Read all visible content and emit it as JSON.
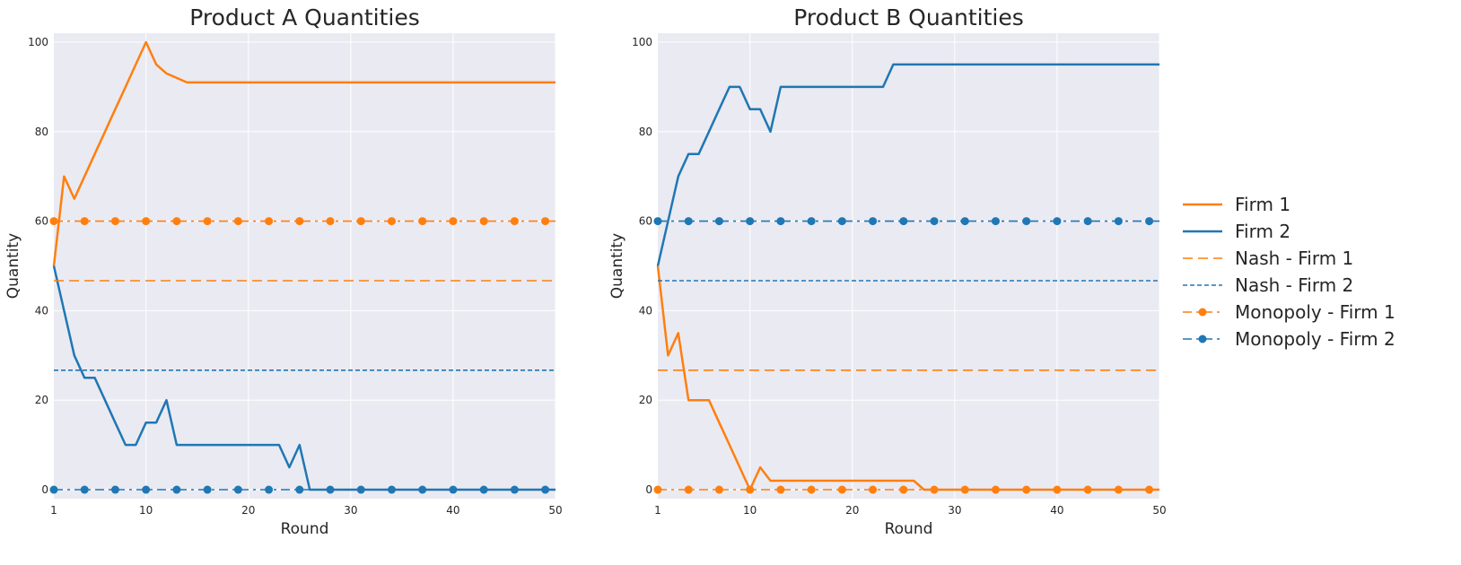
{
  "colors": {
    "firm1": "#ff7f0e",
    "firm2": "#1f77b4",
    "plot_bg": "#eaeaf2",
    "grid": "#ffffff",
    "text": "#262626"
  },
  "legend": {
    "position": "right",
    "items": [
      {
        "label": "Firm 1",
        "color": "#ff7f0e",
        "style": "solid"
      },
      {
        "label": "Firm 2",
        "color": "#1f77b4",
        "style": "solid"
      },
      {
        "label": "Nash - Firm 1",
        "color": "#ff7f0e",
        "style": "dashed"
      },
      {
        "label": "Nash - Firm 2",
        "color": "#1f77b4",
        "style": "dotted"
      },
      {
        "label": "Monopoly - Firm 1",
        "color": "#ff7f0e",
        "style": "dashdot-marker"
      },
      {
        "label": "Monopoly - Firm 2",
        "color": "#1f77b4",
        "style": "dashdot-marker"
      }
    ]
  },
  "chart_data": [
    {
      "type": "line",
      "title": "Product A Quantities",
      "xlabel": "Round",
      "ylabel": "Quantity",
      "xlim": [
        1,
        50
      ],
      "ylim": [
        -2,
        102
      ],
      "xticks": [
        10,
        20,
        30,
        40,
        50
      ],
      "yticks": [
        0,
        20,
        40,
        60,
        80,
        100
      ],
      "grid": true,
      "series": [
        {
          "name": "Firm 1",
          "color": "#ff7f0e",
          "style": "solid",
          "x": [
            1,
            2,
            3,
            4,
            5,
            6,
            7,
            8,
            9,
            10,
            11,
            12,
            13,
            14,
            50
          ],
          "y": [
            50,
            70,
            65,
            70,
            75,
            80,
            85,
            90,
            95,
            100,
            95,
            93,
            92,
            91,
            91
          ]
        },
        {
          "name": "Firm 2",
          "color": "#1f77b4",
          "style": "solid",
          "x": [
            1,
            2,
            3,
            4,
            5,
            6,
            7,
            8,
            9,
            10,
            11,
            12,
            13,
            23,
            24,
            25,
            26,
            50
          ],
          "y": [
            50,
            40,
            30,
            25,
            25,
            20,
            15,
            10,
            10,
            15,
            15,
            20,
            10,
            10,
            5,
            10,
            0,
            0
          ]
        },
        {
          "name": "Nash - Firm 1",
          "color": "#ff7f0e",
          "style": "dashed",
          "x": [
            1,
            50
          ],
          "y": [
            46.7,
            46.7
          ]
        },
        {
          "name": "Nash - Firm 2",
          "color": "#1f77b4",
          "style": "dotted",
          "x": [
            1,
            50
          ],
          "y": [
            26.7,
            26.7
          ]
        },
        {
          "name": "Monopoly - Firm 1",
          "color": "#ff7f0e",
          "style": "dashdot-marker",
          "x": [
            1,
            50
          ],
          "y": [
            60,
            60
          ],
          "markers_x": [
            1,
            4,
            7,
            10,
            13,
            16,
            19,
            22,
            25,
            28,
            31,
            34,
            37,
            40,
            43,
            46,
            49
          ]
        },
        {
          "name": "Monopoly - Firm 2",
          "color": "#1f77b4",
          "style": "dashdot-marker",
          "x": [
            1,
            50
          ],
          "y": [
            0,
            0
          ],
          "markers_x": [
            1,
            4,
            7,
            10,
            13,
            16,
            19,
            22,
            25,
            28,
            31,
            34,
            37,
            40,
            43,
            46,
            49
          ]
        }
      ]
    },
    {
      "type": "line",
      "title": "Product B Quantities",
      "xlabel": "Round",
      "ylabel": "Quantity",
      "xlim": [
        1,
        50
      ],
      "ylim": [
        -2,
        102
      ],
      "xticks": [
        10,
        20,
        30,
        40,
        50
      ],
      "yticks": [
        0,
        20,
        40,
        60,
        80,
        100
      ],
      "grid": true,
      "series": [
        {
          "name": "Firm 1",
          "color": "#ff7f0e",
          "style": "solid",
          "x": [
            1,
            2,
            3,
            4,
            5,
            6,
            7,
            8,
            9,
            10,
            11,
            12,
            26,
            27,
            50
          ],
          "y": [
            50,
            30,
            35,
            20,
            20,
            20,
            15,
            10,
            5,
            0,
            5,
            2,
            2,
            0,
            0
          ]
        },
        {
          "name": "Firm 2",
          "color": "#1f77b4",
          "style": "solid",
          "x": [
            1,
            2,
            3,
            4,
            5,
            6,
            7,
            8,
            9,
            10,
            11,
            12,
            13,
            23,
            24,
            50
          ],
          "y": [
            50,
            60,
            70,
            75,
            75,
            80,
            85,
            90,
            90,
            85,
            85,
            80,
            90,
            90,
            95,
            95
          ]
        },
        {
          "name": "Nash - Firm 1",
          "color": "#ff7f0e",
          "style": "dashed",
          "x": [
            1,
            50
          ],
          "y": [
            26.7,
            26.7
          ]
        },
        {
          "name": "Nash - Firm 2",
          "color": "#1f77b4",
          "style": "dotted",
          "x": [
            1,
            50
          ],
          "y": [
            46.7,
            46.7
          ]
        },
        {
          "name": "Monopoly - Firm 1",
          "color": "#ff7f0e",
          "style": "dashdot-marker",
          "x": [
            1,
            50
          ],
          "y": [
            0,
            0
          ],
          "markers_x": [
            1,
            4,
            7,
            10,
            13,
            16,
            19,
            22,
            25,
            28,
            31,
            34,
            37,
            40,
            43,
            46,
            49
          ]
        },
        {
          "name": "Monopoly - Firm 2",
          "color": "#1f77b4",
          "style": "dashdot-marker",
          "x": [
            1,
            50
          ],
          "y": [
            60,
            60
          ],
          "markers_x": [
            1,
            4,
            7,
            10,
            13,
            16,
            19,
            22,
            25,
            28,
            31,
            34,
            37,
            40,
            43,
            46,
            49
          ]
        }
      ]
    }
  ]
}
